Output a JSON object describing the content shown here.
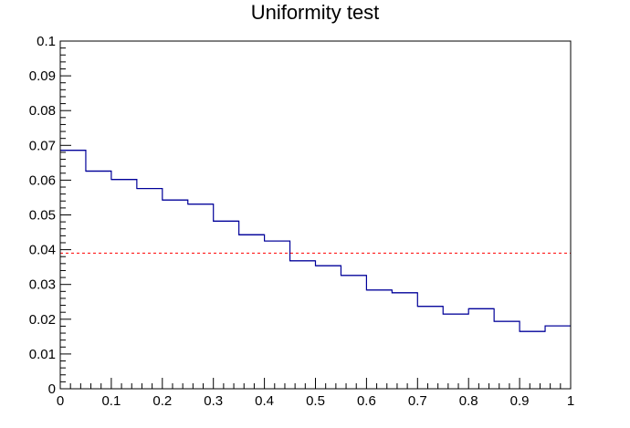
{
  "chart_data": {
    "type": "line",
    "title": "Uniformity test",
    "xlabel": "",
    "ylabel": "",
    "xlim": [
      0,
      1
    ],
    "ylim": [
      0,
      0.1
    ],
    "grid": false,
    "x_ticks": [
      "0",
      "0.1",
      "0.2",
      "0.3",
      "0.4",
      "0.5",
      "0.6",
      "0.7",
      "0.8",
      "0.9",
      "1"
    ],
    "y_ticks": [
      "0",
      "0.01",
      "0.02",
      "0.03",
      "0.04",
      "0.05",
      "0.06",
      "0.07",
      "0.08",
      "0.09",
      "0.1"
    ],
    "bin_edges": [
      0,
      0.05,
      0.1,
      0.15,
      0.2,
      0.25,
      0.3,
      0.35,
      0.4,
      0.45,
      0.5,
      0.55,
      0.6,
      0.65,
      0.7,
      0.75,
      0.8,
      0.85,
      0.9,
      0.95,
      1.0
    ],
    "series": [
      {
        "values": [
          0.0686,
          0.0626,
          0.0602,
          0.0576,
          0.0543,
          0.0531,
          0.0482,
          0.0443,
          0.0425,
          0.0368,
          0.0354,
          0.0326,
          0.0284,
          0.0276,
          0.0237,
          0.0215,
          0.023,
          0.0194,
          0.0165,
          0.0181
        ],
        "color": "#000099"
      }
    ],
    "reference_line": {
      "y": 0.039,
      "color": "#ff0000",
      "style": "dashed"
    }
  }
}
